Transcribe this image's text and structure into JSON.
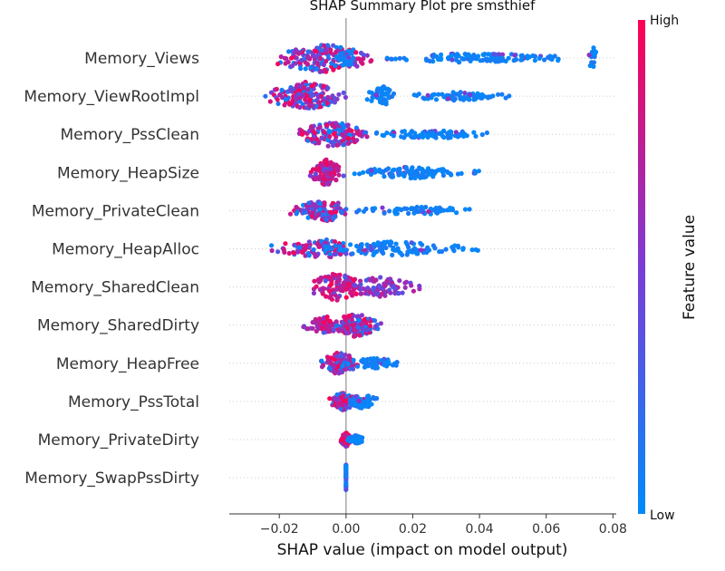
{
  "chart_data": {
    "type": "scatter",
    "subtype": "shap-beeswarm",
    "title": "SHAP Summary Plot pre smsthief",
    "xlabel": "SHAP value (impact on model output)",
    "xlim": [
      -0.035,
      0.081
    ],
    "x_ticks": [
      -0.02,
      0.0,
      0.02,
      0.04,
      0.06,
      0.08
    ],
    "x_tick_labels": [
      "−0.02",
      "0.00",
      "0.02",
      "0.04",
      "0.06",
      "0.08"
    ],
    "zero_line": 0.0,
    "colorbar": {
      "label": "Feature value",
      "high_label": "High",
      "low_label": "Low",
      "low_color": "#008bfb",
      "mid_color": "#7c3bd6",
      "high_color": "#ff0052"
    },
    "features": [
      {
        "name": "Memory_Views",
        "min": -0.03,
        "max": 0.075,
        "clusters": [
          {
            "center": -0.007,
            "spread": 0.02,
            "count": 170,
            "width": 1.0,
            "feature_value": "mixed"
          },
          {
            "center": 0.0,
            "spread": 0.004,
            "count": 20,
            "width": 0.6,
            "feature_value": "low"
          },
          {
            "center": 0.04,
            "spread": 0.036,
            "count": 120,
            "width": 0.35,
            "feature_value": "low"
          },
          {
            "center": 0.074,
            "spread": 0.002,
            "count": 15,
            "width": 0.8,
            "feature_value": "low"
          }
        ]
      },
      {
        "name": "Memory_ViewRootImpl",
        "min": -0.026,
        "max": 0.054,
        "clusters": [
          {
            "center": -0.012,
            "spread": 0.014,
            "count": 150,
            "width": 1.0,
            "feature_value": "mixed"
          },
          {
            "center": 0.011,
            "spread": 0.006,
            "count": 50,
            "width": 0.7,
            "feature_value": "low"
          },
          {
            "center": 0.033,
            "spread": 0.021,
            "count": 70,
            "width": 0.3,
            "feature_value": "low"
          }
        ]
      },
      {
        "name": "Memory_PssClean",
        "min": -0.019,
        "max": 0.052,
        "clusters": [
          {
            "center": -0.004,
            "spread": 0.014,
            "count": 140,
            "width": 0.9,
            "feature_value": "mixed"
          },
          {
            "center": 0.025,
            "spread": 0.024,
            "count": 80,
            "width": 0.3,
            "feature_value": "low"
          }
        ]
      },
      {
        "name": "Memory_HeapSize",
        "min": -0.011,
        "max": 0.043,
        "clusters": [
          {
            "center": -0.006,
            "spread": 0.006,
            "count": 110,
            "width": 0.9,
            "feature_value": "high"
          },
          {
            "center": 0.02,
            "spread": 0.023,
            "count": 110,
            "width": 0.4,
            "feature_value": "low"
          }
        ]
      },
      {
        "name": "Memory_PrivateClean",
        "min": -0.019,
        "max": 0.043,
        "clusters": [
          {
            "center": -0.007,
            "spread": 0.011,
            "count": 110,
            "width": 0.8,
            "feature_value": "mixed"
          },
          {
            "center": 0.02,
            "spread": 0.023,
            "count": 70,
            "width": 0.3,
            "feature_value": "low"
          }
        ]
      },
      {
        "name": "Memory_HeapAlloc",
        "min": -0.028,
        "max": 0.045,
        "clusters": [
          {
            "center": -0.008,
            "spread": 0.018,
            "count": 90,
            "width": 0.7,
            "feature_value": "mixed"
          },
          {
            "center": 0.014,
            "spread": 0.03,
            "count": 110,
            "width": 0.5,
            "feature_value": "low"
          }
        ]
      },
      {
        "name": "Memory_SharedClean",
        "min": -0.018,
        "max": 0.025,
        "clusters": [
          {
            "center": -0.003,
            "spread": 0.01,
            "count": 110,
            "width": 1.0,
            "feature_value": "high"
          },
          {
            "center": 0.01,
            "spread": 0.014,
            "count": 90,
            "width": 0.7,
            "feature_value": "mid"
          }
        ]
      },
      {
        "name": "Memory_SharedDirty",
        "min": -0.015,
        "max": 0.011,
        "clusters": [
          {
            "center": -0.006,
            "spread": 0.008,
            "count": 70,
            "width": 0.6,
            "feature_value": "high"
          },
          {
            "center": 0.003,
            "spread": 0.008,
            "count": 120,
            "width": 0.9,
            "feature_value": "mixed"
          }
        ]
      },
      {
        "name": "Memory_HeapFree",
        "min": -0.01,
        "max": 0.019,
        "clusters": [
          {
            "center": -0.002,
            "spread": 0.007,
            "count": 110,
            "width": 0.8,
            "feature_value": "mixed"
          },
          {
            "center": 0.008,
            "spread": 0.01,
            "count": 60,
            "width": 0.4,
            "feature_value": "low"
          }
        ]
      },
      {
        "name": "Memory_PssTotal",
        "min": -0.009,
        "max": 0.011,
        "clusters": [
          {
            "center": -0.001,
            "spread": 0.006,
            "count": 90,
            "width": 0.6,
            "feature_value": "mixed"
          },
          {
            "center": 0.005,
            "spread": 0.006,
            "count": 60,
            "width": 0.5,
            "feature_value": "low"
          }
        ]
      },
      {
        "name": "Memory_PrivateDirty",
        "min": -0.004,
        "max": 0.006,
        "clusters": [
          {
            "center": 0.0,
            "spread": 0.002,
            "count": 60,
            "width": 0.5,
            "feature_value": "high"
          },
          {
            "center": 0.003,
            "spread": 0.003,
            "count": 50,
            "width": 0.3,
            "feature_value": "low"
          }
        ]
      },
      {
        "name": "Memory_SwapPssDirty",
        "min": 0.0,
        "max": 0.0,
        "clusters": [
          {
            "center": 0.0,
            "spread": 0.0,
            "count": 40,
            "width": 0.9,
            "feature_value": "low"
          }
        ]
      }
    ]
  }
}
